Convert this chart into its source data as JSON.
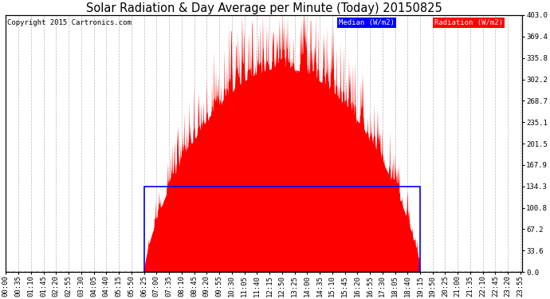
{
  "title": "Solar Radiation & Day Average per Minute (Today) 20150825",
  "copyright": "Copyright 2015 Cartronics.com",
  "yticks": [
    0.0,
    33.6,
    67.2,
    100.8,
    134.3,
    167.9,
    201.5,
    235.1,
    268.7,
    302.2,
    335.8,
    369.4,
    403.0
  ],
  "ymax": 403.0,
  "ymin": 0.0,
  "legend_median_label": "Median (W/m2)",
  "legend_radiation_label": "Radiation (W/m2)",
  "median_box_color": "#0000ff",
  "radiation_color": "#ff0000",
  "bg_color": "#ffffff",
  "grid_color": "#888888",
  "dashed_line_color": "#0000cc",
  "sunrise_minute": 385,
  "sunset_minute": 1155,
  "median_value": 134.3,
  "total_minutes": 1440,
  "xtick_step": 35,
  "title_fontsize": 10.5,
  "tick_fontsize": 6.5,
  "copyright_fontsize": 6.5
}
